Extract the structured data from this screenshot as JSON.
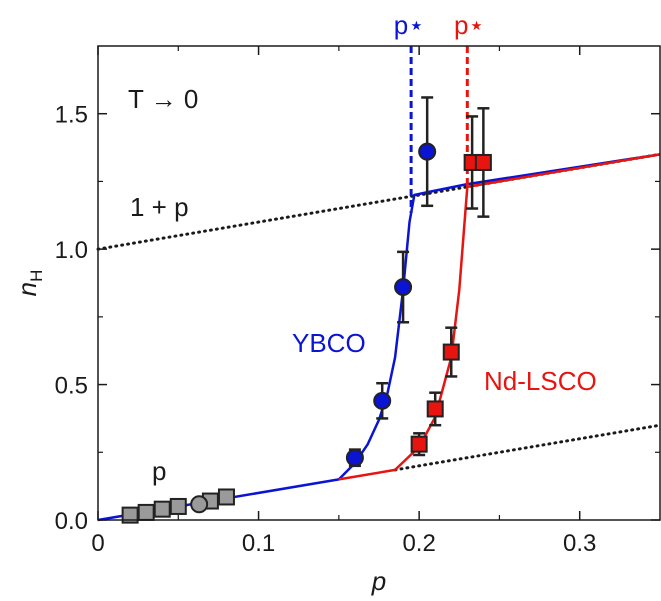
{
  "chart_data": {
    "type": "scatter",
    "title": "",
    "xlabel": "p",
    "ylabel": "n",
    "ylabel_sub": "H",
    "xlim": [
      0,
      0.35
    ],
    "ylim": [
      0,
      1.75
    ],
    "x_ticks": [
      0,
      0.1,
      0.2,
      0.3
    ],
    "x_tick_labels": [
      "0",
      "0.1",
      "0.2",
      "0.3"
    ],
    "y_ticks": [
      0,
      0.5,
      1.0,
      1.5
    ],
    "y_tick_labels": [
      "0.0",
      "0.5",
      "1.0",
      "1.5"
    ],
    "grid": false,
    "legend": "none",
    "colors": {
      "ybco": "#0a14d2",
      "ndlsco": "#e8140f",
      "gray": "#9a9a9a",
      "axis": "#1a1a1a"
    },
    "annotations": {
      "limit": "T → 0",
      "one_plus_p": "1 + p",
      "p_label": "p",
      "ybco_label": "YBCO",
      "ndlsco_label": "Nd-LSCO",
      "pstar_ybco": "p⋆",
      "pstar_ndlsco": "p⋆"
    },
    "pstar": {
      "ybco": 0.195,
      "ndlsco": 0.23
    },
    "reference_lines": [
      {
        "name": "1 + p",
        "x": [
          0,
          0.35
        ],
        "y": [
          1.0,
          1.35
        ],
        "style": "dotted"
      },
      {
        "name": "p",
        "x": [
          0.185,
          0.35
        ],
        "y": [
          0.185,
          0.35
        ],
        "style": "dotted"
      }
    ],
    "series": [
      {
        "name": "YBCO",
        "marker": "circle",
        "color": "#0a14d2",
        "points": [
          {
            "x": 0.16,
            "y": 0.23,
            "err": 0.03
          },
          {
            "x": 0.177,
            "y": 0.44,
            "err": 0.065
          },
          {
            "x": 0.19,
            "y": 0.86,
            "err": 0.13
          },
          {
            "x": 0.205,
            "y": 1.36,
            "err": 0.2
          }
        ]
      },
      {
        "name": "Nd-LSCO",
        "marker": "square",
        "color": "#e8140f",
        "points": [
          {
            "x": 0.2,
            "y": 0.28,
            "err": 0.04
          },
          {
            "x": 0.21,
            "y": 0.41,
            "err": 0.06
          },
          {
            "x": 0.22,
            "y": 0.62,
            "err": 0.09
          },
          {
            "x": 0.233,
            "y": 1.32,
            "err": 0.17
          },
          {
            "x": 0.24,
            "y": 1.32,
            "err": 0.2
          }
        ]
      },
      {
        "name": "",
        "marker": "square",
        "color": "#9a9a9a",
        "points": [
          {
            "x": 0.02,
            "y": 0.018
          },
          {
            "x": 0.03,
            "y": 0.028
          },
          {
            "x": 0.04,
            "y": 0.04
          },
          {
            "x": 0.05,
            "y": 0.05
          },
          {
            "x": 0.07,
            "y": 0.07
          },
          {
            "x": 0.08,
            "y": 0.085
          }
        ]
      },
      {
        "name": "",
        "marker": "circle",
        "color": "#9a9a9a",
        "points": [
          {
            "x": 0.063,
            "y": 0.058
          }
        ]
      }
    ],
    "curves": [
      {
        "name": "YBCO",
        "color": "#0a14d2",
        "x": [
          0,
          0.15,
          0.16,
          0.168,
          0.175,
          0.18,
          0.185,
          0.19,
          0.194,
          0.197,
          0.205,
          0.23,
          0.35
        ],
        "y": [
          0,
          0.15,
          0.21,
          0.28,
          0.37,
          0.46,
          0.6,
          0.85,
          1.1,
          1.2,
          1.21,
          1.24,
          1.35
        ]
      },
      {
        "name": "Nd-LSCO",
        "color": "#e8140f",
        "x": [
          0.15,
          0.185,
          0.2,
          0.21,
          0.22,
          0.225,
          0.23,
          0.235,
          0.35
        ],
        "y": [
          0.15,
          0.185,
          0.27,
          0.38,
          0.6,
          0.85,
          1.23,
          1.235,
          1.35
        ]
      }
    ]
  }
}
